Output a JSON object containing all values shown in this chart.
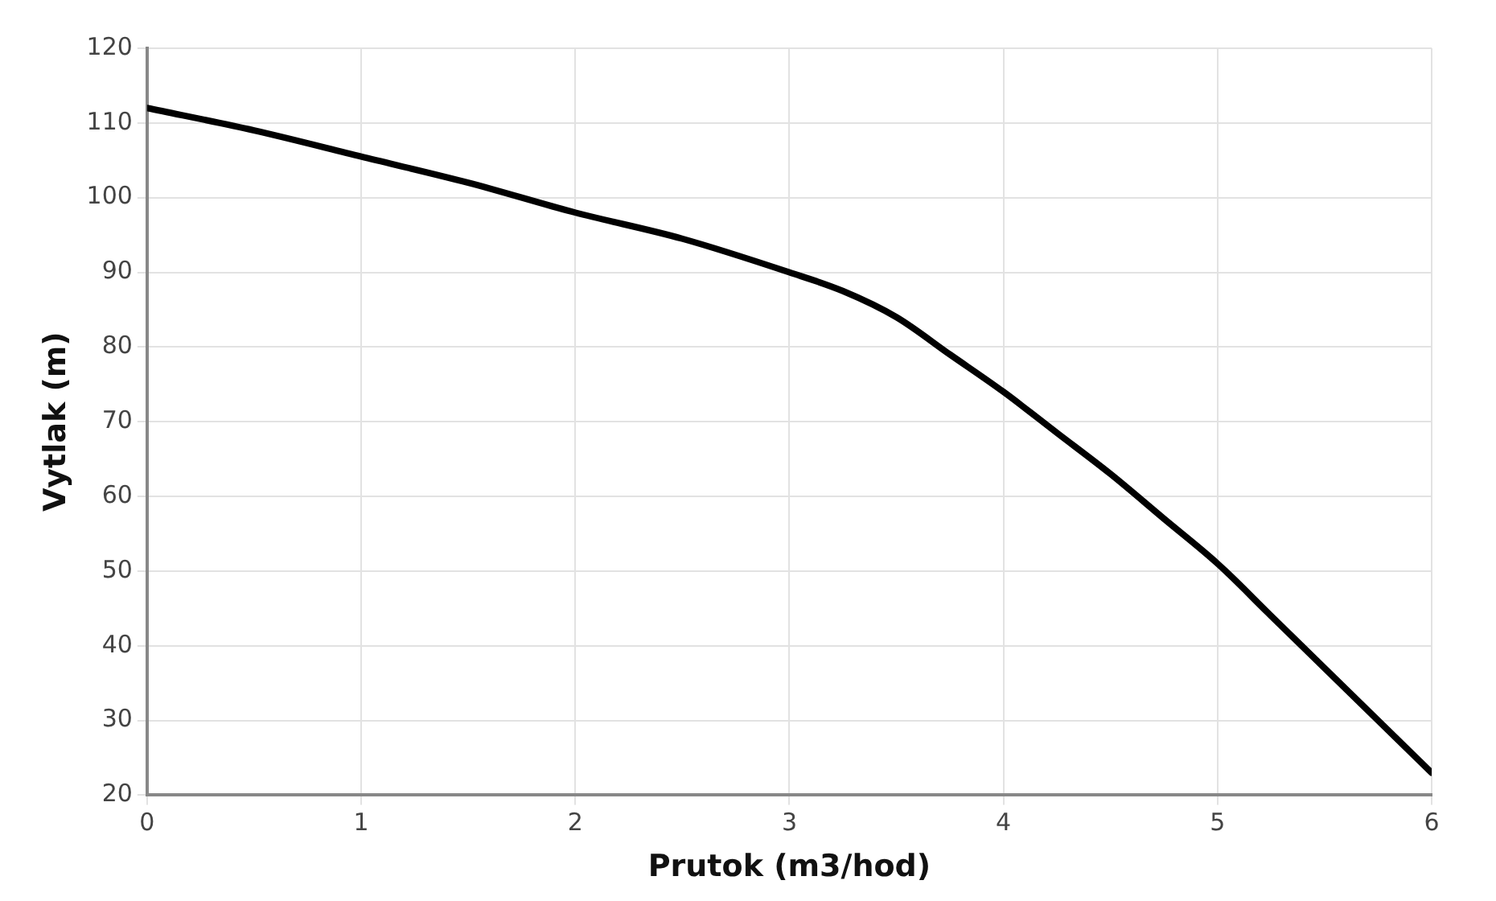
{
  "chart_data": {
    "type": "line",
    "xlabel": "Prutok (m3/hod)",
    "ylabel": "Vytlak (m)",
    "x": [
      0,
      0.5,
      1,
      1.5,
      2,
      2.5,
      3,
      3.25,
      3.5,
      3.75,
      4,
      4.25,
      4.5,
      4.75,
      5,
      5.25,
      5.5,
      5.75,
      6
    ],
    "series": [
      {
        "color": "#000000",
        "values": [
          112,
          109,
          105.5,
          102,
          98,
          94.5,
          90,
          87.5,
          84,
          79,
          74,
          68.5,
          63,
          57,
          51,
          44,
          37,
          30,
          23
        ]
      }
    ],
    "xlim": [
      0,
      6
    ],
    "xticks": [
      0,
      1,
      2,
      3,
      4,
      5,
      6
    ],
    "ylim": [
      20,
      120
    ],
    "yticks": [
      20,
      30,
      40,
      50,
      60,
      70,
      80,
      90,
      100,
      110,
      120
    ],
    "grid": true,
    "marker": "none",
    "line_style": "solid"
  }
}
